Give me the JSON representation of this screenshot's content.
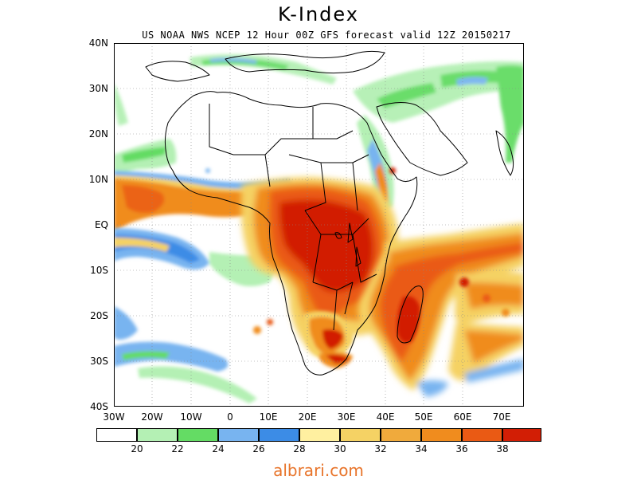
{
  "title": "K-Index",
  "subtitle": "US NOAA NWS NCEP 12 Hour 00Z GFS forecast valid 12Z 20150217",
  "lat_labels": [
    "40N",
    "30N",
    "20N",
    "10N",
    "EQ",
    "10S",
    "20S",
    "30S",
    "40S"
  ],
  "lon_labels": [
    "30W",
    "20W",
    "10W",
    "0",
    "10E",
    "20E",
    "30E",
    "40E",
    "50E",
    "60E",
    "70E"
  ],
  "colorbar": {
    "levels": [
      "20",
      "22",
      "24",
      "26",
      "28",
      "30",
      "32",
      "34",
      "36",
      "38"
    ],
    "colors": [
      "#ffffff",
      "#b4f0b4",
      "#64dc64",
      "#78b4f0",
      "#3c8ce6",
      "#fff0a0",
      "#f5d264",
      "#f0aa3c",
      "#f08c1e",
      "#ea5a14",
      "#d21e05"
    ]
  },
  "watermark": "albrari.com"
}
